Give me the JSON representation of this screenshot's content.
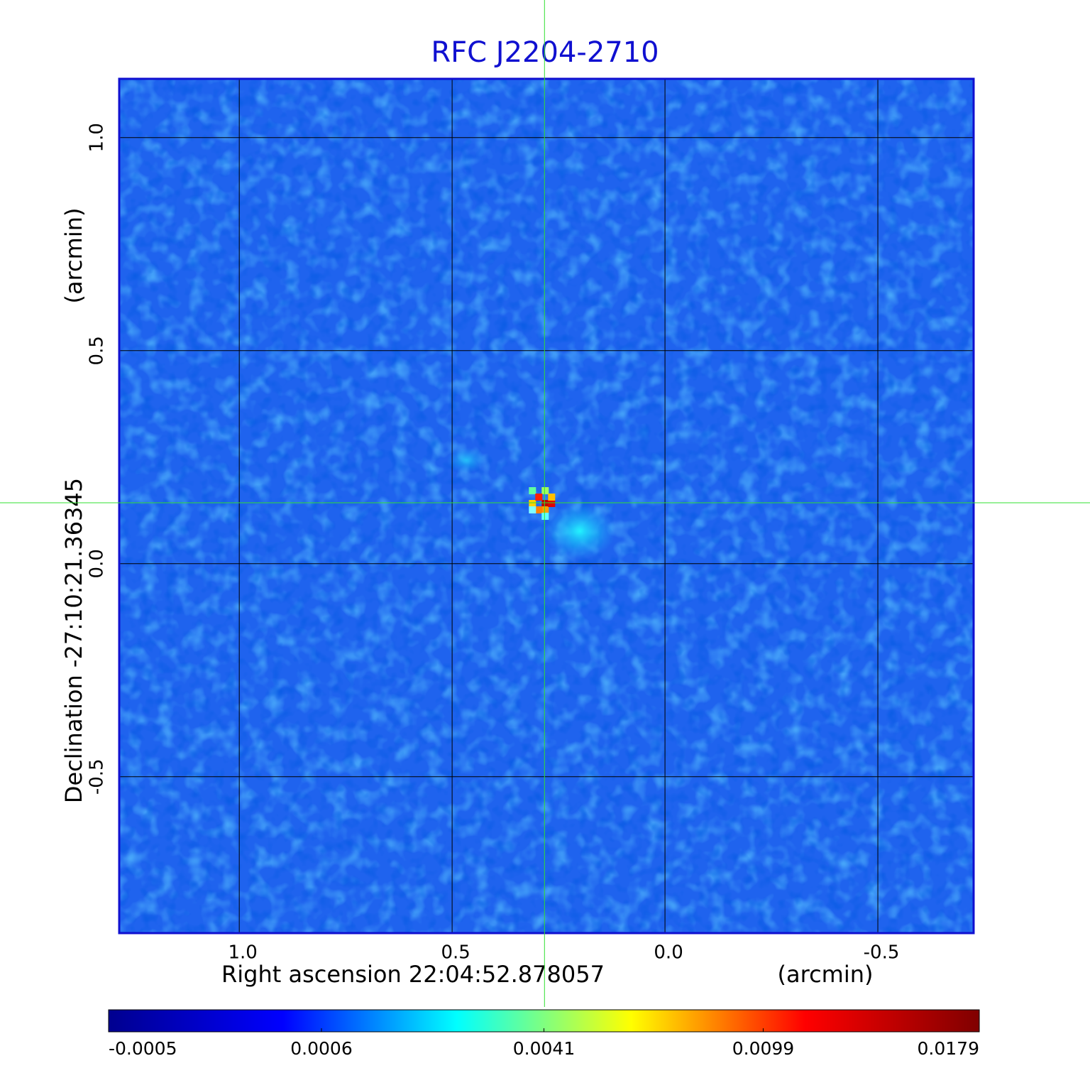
{
  "chart_data": {
    "type": "image",
    "title": "RFC J2204-2710",
    "xlabel": "Right ascension  22:04:52.878057",
    "xunit": "(arcmin)",
    "ylabel": "Declination  -27:10:21.36345",
    "yunit": "(arcmin)",
    "xlim": [
      1.282,
      -0.725
    ],
    "ylim": [
      -0.867,
      1.138
    ],
    "xticks": [
      {
        "value": 1,
        "label": "1.0"
      },
      0.5,
      {
        "value": 0,
        "label": "0.0"
      },
      -0.5
    ],
    "yticks": [
      -0.5,
      {
        "value": 0,
        "label": "0.0"
      },
      0.5,
      {
        "value": 1,
        "label": "1.0"
      }
    ],
    "grid": true,
    "crosshair": {
      "x": 0.283,
      "y": 0.143
    },
    "colorbar": {
      "scale": "sqrt",
      "lim": [
        -0.0005,
        0.0179
      ],
      "ticks": [
        -0.0005,
        0.0006,
        0.0041,
        0.0099,
        0.0179
      ],
      "colors": [
        "#00008f",
        "#0000ff",
        "#00ffff",
        "#ffff00",
        "#ff0000",
        "#800000"
      ]
    }
  }
}
